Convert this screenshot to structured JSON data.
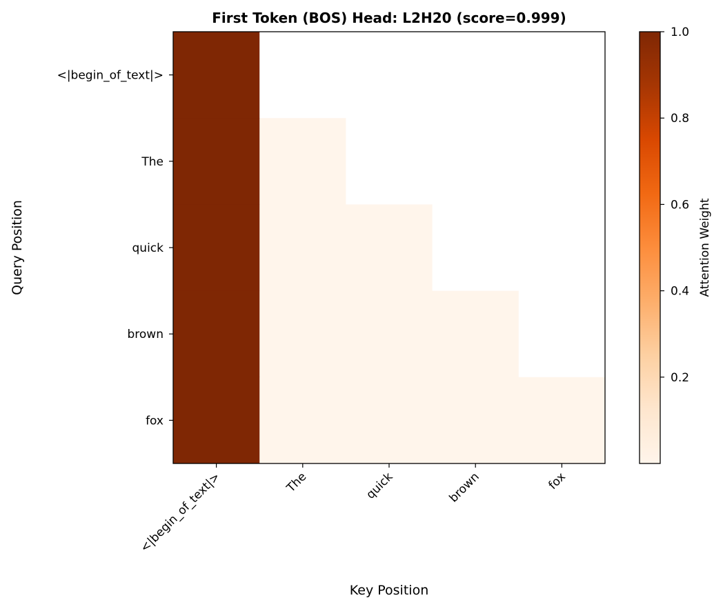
{
  "chart_data": {
    "type": "heatmap",
    "title": "First Token (BOS) Head: L2H20 (score=0.999)",
    "xlabel": "Key Position",
    "ylabel": "Query Position",
    "x_categories": [
      "<|begin_of_text|>",
      "The",
      "quick",
      "brown",
      "fox"
    ],
    "y_categories": [
      "<|begin_of_text|>",
      "The",
      "quick",
      "brown",
      "fox"
    ],
    "values": [
      [
        1.0,
        null,
        null,
        null,
        null
      ],
      [
        0.999,
        0.001,
        null,
        null,
        null
      ],
      [
        0.999,
        0.0005,
        0.0005,
        null,
        null
      ],
      [
        0.999,
        0.0003,
        0.0003,
        0.0003,
        null
      ],
      [
        0.999,
        0.0002,
        0.0002,
        0.0002,
        0.0002
      ]
    ],
    "colormap": "Oranges",
    "colorbar": {
      "label": "Attention Weight",
      "range": [
        0.0,
        1.0
      ],
      "ticks": [
        0.2,
        0.4,
        0.6,
        0.8,
        1.0
      ],
      "tick_labels": [
        "0.2",
        "0.4",
        "0.6",
        "0.8",
        "1.0"
      ]
    },
    "masked_color": "#ffffff",
    "grid": false
  }
}
